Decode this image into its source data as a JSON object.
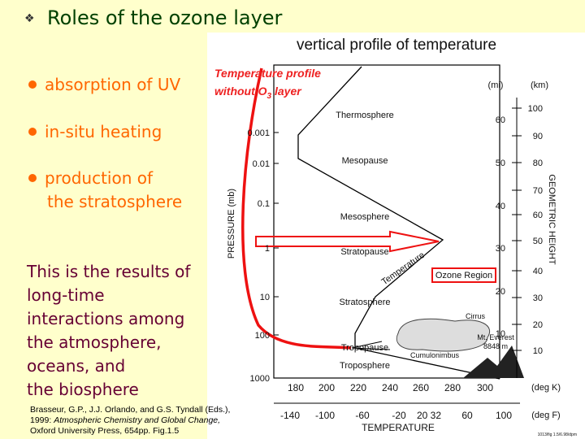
{
  "header": {
    "title": "Roles of the ozone layer"
  },
  "bullets": [
    [
      "absorption of UV"
    ],
    [
      "in-situ heating"
    ],
    [
      "production of",
      "the stratosphere"
    ]
  ],
  "note": [
    "This is the results of",
    "long-time",
    "interactions among",
    "the atmosphere,",
    "oceans, and",
    "the biosphere"
  ],
  "citation": {
    "line1": "Brasseur, G.P., J.J. Orlando, and G.S. Tyndall (Eds.),",
    "line2_plain": "1999: ",
    "line2_italic": "Atmospheric Chemistry and Global Change,",
    "line3": "Oxford University Press, 654pp. Fig.1.5"
  },
  "figure": {
    "title": "vertical profile of temperature",
    "annotation": {
      "line1": "Temperature profile",
      "line2": "without O",
      "sub": "3",
      "line2_end": " layer"
    },
    "pressure_axis": {
      "label": "PRESSURE (mb)",
      "ticks": [
        "0.001",
        "0.01",
        "0.1",
        "1",
        "10",
        "100",
        "1000"
      ]
    },
    "mi_axis": {
      "label": "(mi)",
      "ticks": [
        "60",
        "50",
        "40",
        "30",
        "20",
        "10"
      ]
    },
    "km_axis": {
      "label": "(km)",
      "ticks": [
        "100",
        "90",
        "80",
        "70",
        "60",
        "50",
        "40",
        "30",
        "20",
        "10"
      ]
    },
    "height_label": "GEOMETRIC HEIGHT",
    "degK_axis": {
      "label": "(deg K)",
      "ticks": [
        "180",
        "200",
        "220",
        "240",
        "260",
        "280",
        "300"
      ]
    },
    "degF_axis": {
      "label": "(deg F)",
      "ticks": [
        "-140",
        "-100",
        "-60",
        "-20",
        "20 32",
        "60",
        "100"
      ]
    },
    "x_label": "TEMPERATURE",
    "layers": [
      "Thermosphere",
      "Mesopause",
      "Mesosphere",
      "Stratopause",
      "Stratosphere",
      "Tropopause",
      "Troposphere"
    ],
    "curve_label": "Temperature",
    "ozone": "Ozone Region",
    "clouds": {
      "cirrus": "Cirrus",
      "everest": "Mt. Everest",
      "everest_height": "8848 m",
      "cumulonimbus": "Cumulonimbus"
    },
    "credit": "1013/fig 1.5/6.98/dpm"
  }
}
